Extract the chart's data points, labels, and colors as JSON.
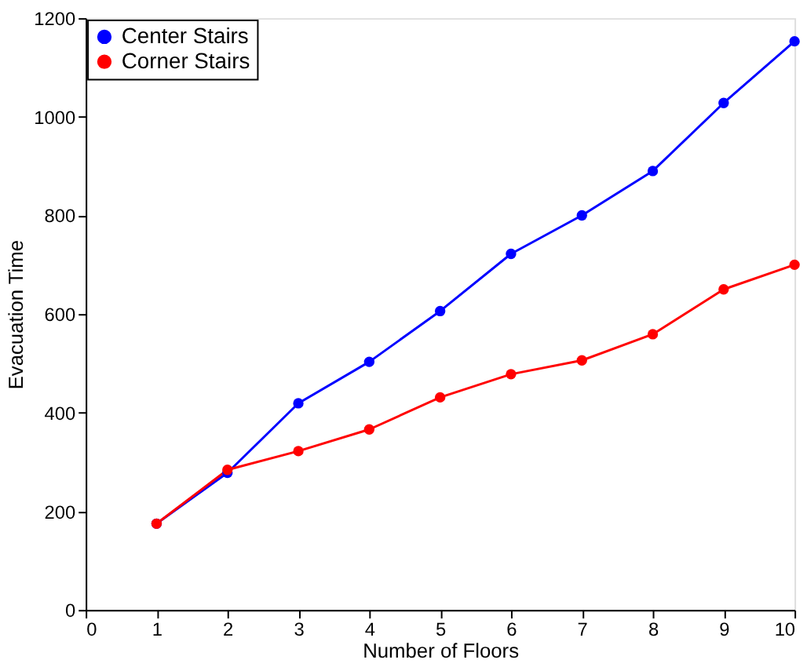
{
  "chart_data": {
    "type": "line",
    "xlabel": "Number of Floors",
    "ylabel": "Evacuation Time",
    "x": [
      1,
      2,
      3,
      4,
      5,
      6,
      7,
      8,
      9,
      10
    ],
    "series": [
      {
        "name": "Center Stairs",
        "color": "#0000ff",
        "values": [
          175,
          278,
          419,
          503,
          606,
          722,
          800,
          890,
          1028,
          1153
        ]
      },
      {
        "name": "Corner Stairs",
        "color": "#ff0000",
        "values": [
          175,
          284,
          322,
          366,
          431,
          478,
          506,
          559,
          650,
          700
        ]
      }
    ],
    "xlim": [
      0,
      10
    ],
    "xticks": [
      0,
      1,
      2,
      3,
      4,
      5,
      6,
      7,
      8,
      9,
      10
    ],
    "ylim": [
      0,
      1200
    ],
    "yticks": [
      0,
      200,
      400,
      600,
      800,
      1000,
      1200
    ],
    "grid": false,
    "legend": "top left",
    "marker": "circle",
    "line_style": "solid"
  }
}
